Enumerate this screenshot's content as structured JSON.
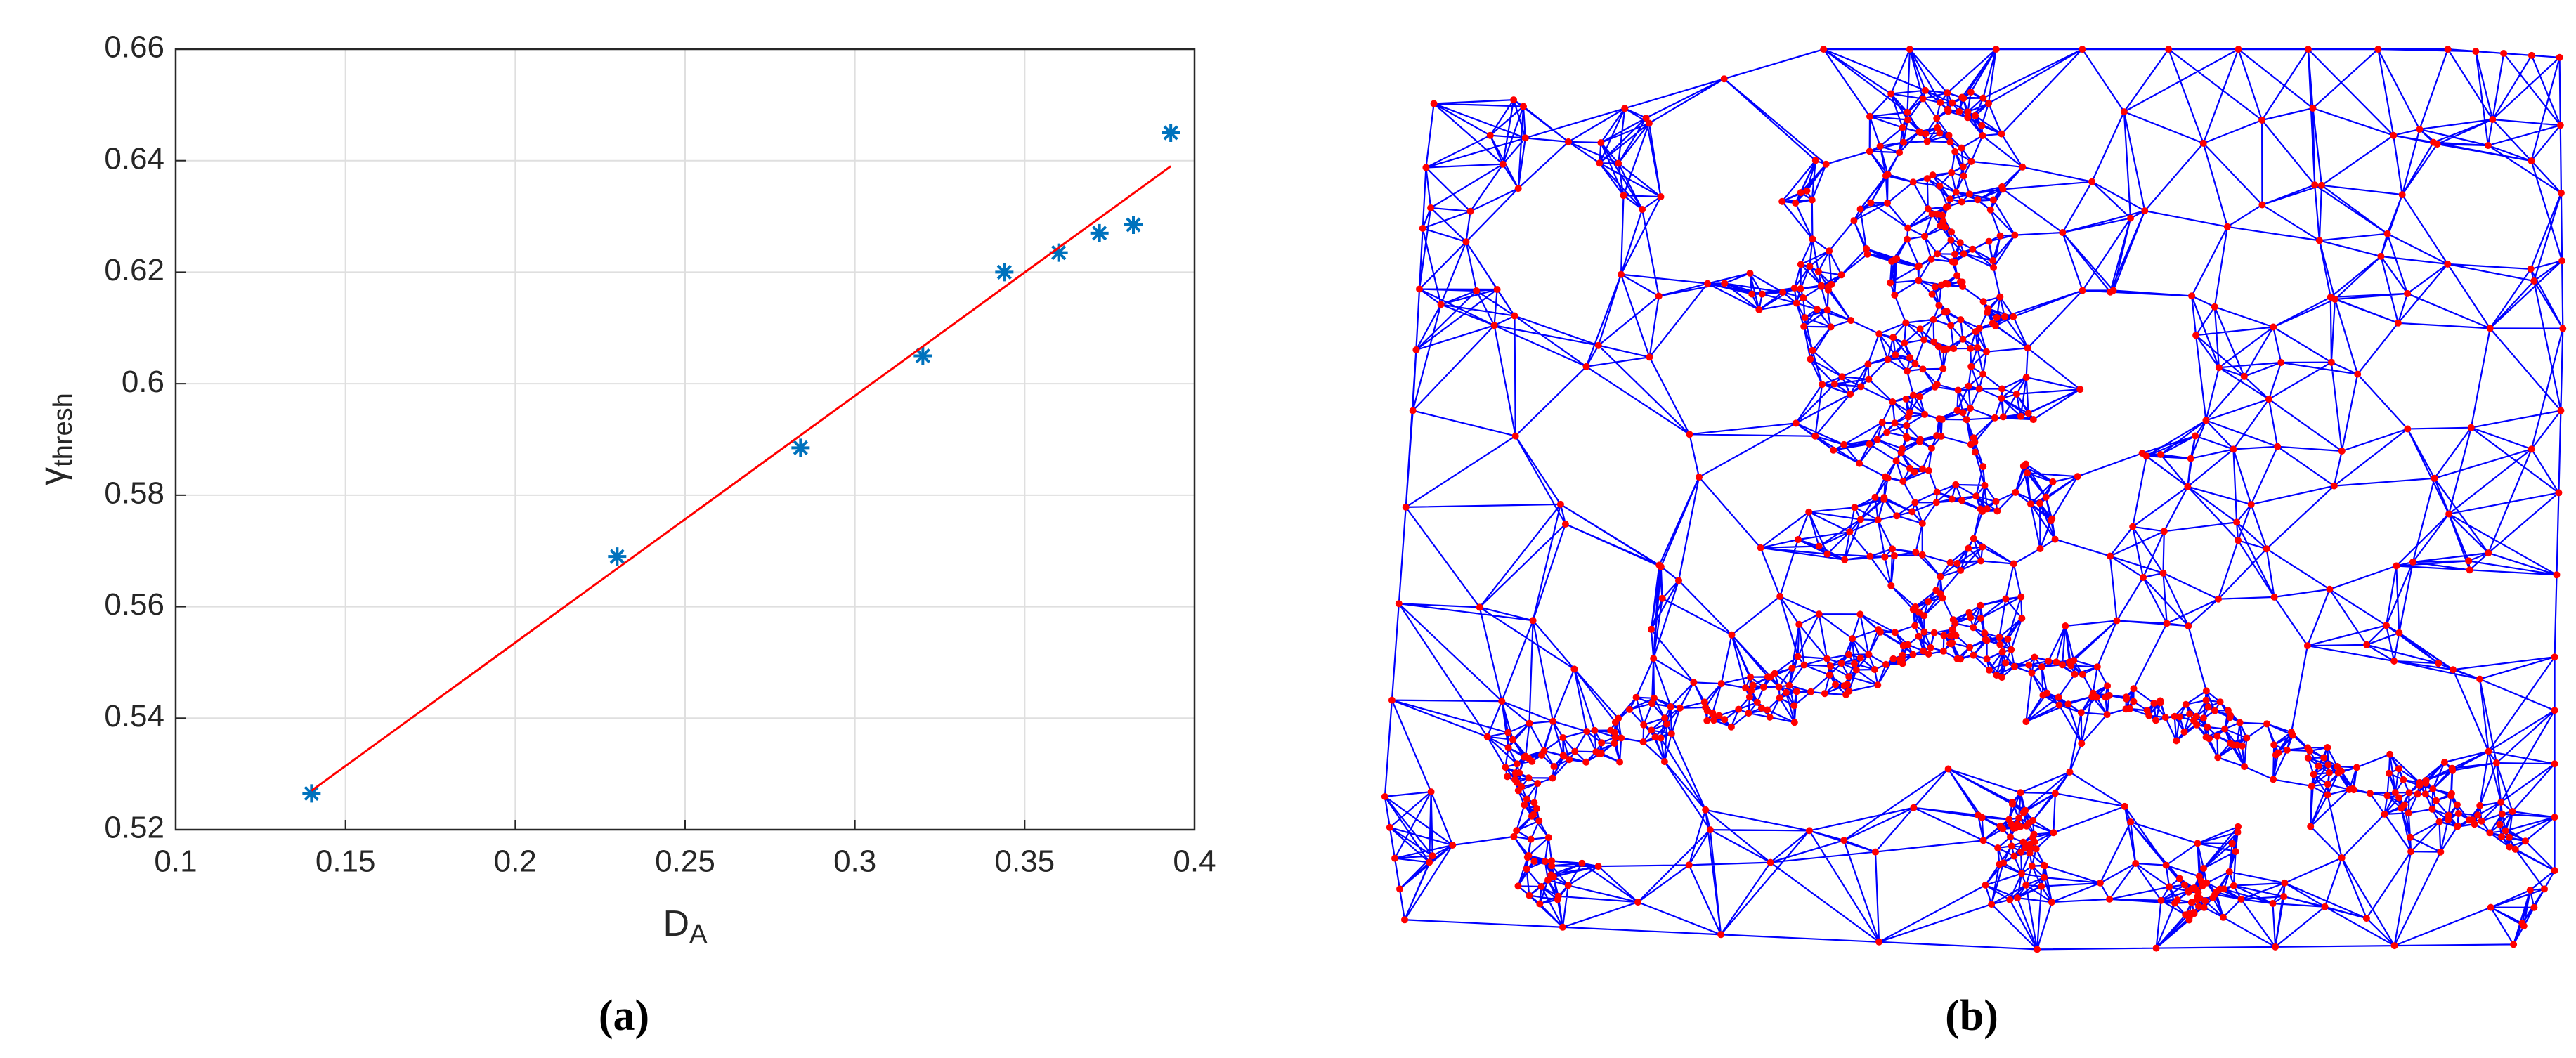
{
  "chart_data": {
    "type": "scatter",
    "xlabel": {
      "text": "D",
      "sub": "A"
    },
    "ylabel": {
      "text": "γ",
      "sub": "thresh"
    },
    "caption": "(a)",
    "xlim": [
      0.1,
      0.4
    ],
    "xticks": [
      0.1,
      0.15,
      0.2,
      0.25,
      0.3,
      0.35,
      0.4
    ],
    "ylim": [
      0.52,
      0.66
    ],
    "yticks": [
      0.52,
      0.54,
      0.56,
      0.58,
      0.6,
      0.62,
      0.64,
      0.66
    ],
    "grid": true,
    "series": [
      {
        "type": "scatter",
        "color": "#0072bd",
        "x": [
          0.14,
          0.23,
          0.284,
          0.32,
          0.344,
          0.36,
          0.372,
          0.382,
          0.393
        ],
        "values": [
          0.5265,
          0.569,
          0.5885,
          0.605,
          0.62,
          0.6235,
          0.627,
          0.6285,
          0.645
        ]
      },
      {
        "type": "line",
        "color": "#ff0000",
        "x": [
          0.14,
          0.393
        ],
        "values": [
          0.527,
          0.639
        ]
      }
    ]
  },
  "mesh_panel": {
    "caption": "(b)"
  }
}
